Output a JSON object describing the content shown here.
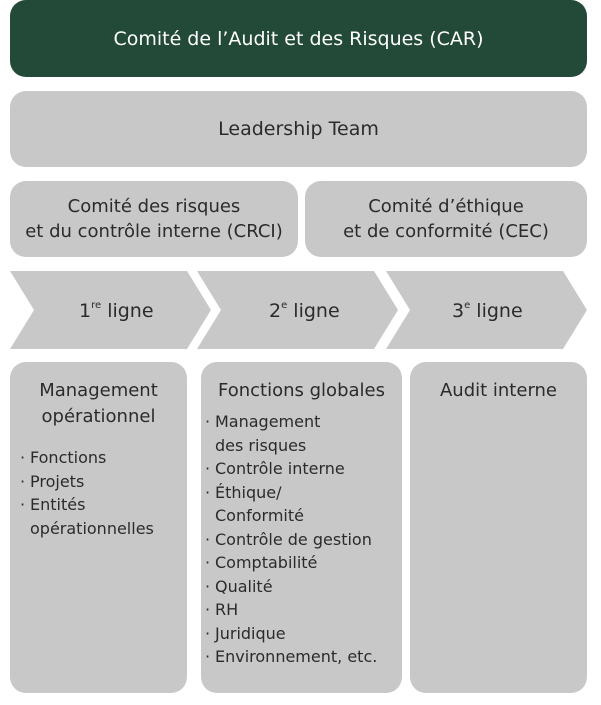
{
  "top": {
    "title": "Comité de l’Audit et des Risques (CAR)"
  },
  "leadership": {
    "title": "Leadership Team"
  },
  "committees": [
    {
      "line1": "Comité des risques",
      "line2": "et du contrôle interne (CRCI)"
    },
    {
      "line1": "Comité d’éthique",
      "line2": "et de conformité (CEC)"
    }
  ],
  "lines": [
    {
      "num": "1",
      "sup": "re",
      "word": "ligne"
    },
    {
      "num": "2",
      "sup": "e",
      "word": "ligne"
    },
    {
      "num": "3",
      "sup": "e",
      "word": "ligne"
    }
  ],
  "columns": [
    {
      "title_l1": "Management",
      "title_l2": "opérationnel",
      "items": [
        "Fonctions",
        "Projets",
        "Entités",
        "opérationnelles"
      ]
    },
    {
      "title": "Fonctions globales",
      "items": [
        "Management",
        "des risques",
        "Contrôle interne",
        "Éthique/",
        "Conformité",
        "Contrôle de gestion",
        "Comptabilité",
        "Qualité",
        "RH",
        "Juridique",
        "Environnement, etc."
      ]
    },
    {
      "title": "Audit interne"
    }
  ],
  "colors": {
    "dark_green": "#234a38",
    "grey": "#c8c8c8",
    "text": "#2b2b2b"
  }
}
